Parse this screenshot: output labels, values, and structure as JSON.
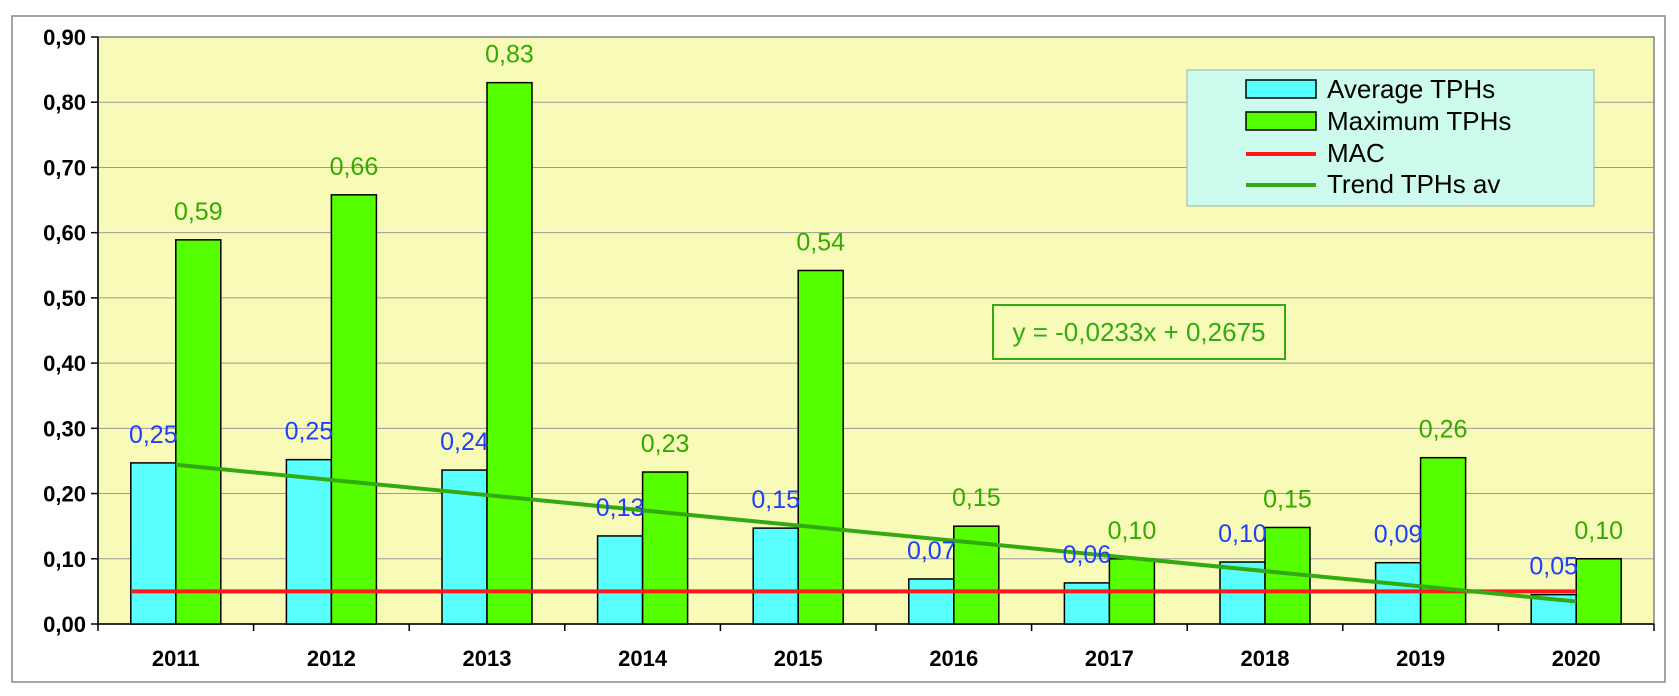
{
  "chart_data": {
    "type": "bar",
    "categories": [
      "2011",
      "2012",
      "2013",
      "2014",
      "2015",
      "2016",
      "2017",
      "2018",
      "2019",
      "2020"
    ],
    "series": [
      {
        "name": "Average TPHs",
        "type": "bar",
        "color": "#59ffff",
        "values": [
          0.247,
          0.252,
          0.236,
          0.135,
          0.147,
          0.069,
          0.063,
          0.095,
          0.094,
          0.045
        ],
        "labels": [
          "0,25",
          "0,25",
          "0,24",
          "0,13",
          "0,15",
          "0,07",
          "0,06",
          "0,10",
          "0,09",
          "0,05"
        ],
        "label_color": "#1f3fff"
      },
      {
        "name": "Maximum TPHs",
        "type": "bar",
        "color": "#55ff00",
        "values": [
          0.589,
          0.658,
          0.83,
          0.233,
          0.542,
          0.15,
          0.1,
          0.148,
          0.255,
          0.1
        ],
        "labels": [
          "0,59",
          "0,66",
          "0,83",
          "0,23",
          "0,54",
          "0,15",
          "0,10",
          "0,15",
          "0,26",
          "0,10"
        ],
        "label_color": "#33aa00"
      },
      {
        "name": "MAC",
        "type": "line",
        "color": "#ff1a1a",
        "values": [
          0.05,
          0.05,
          0.05,
          0.05,
          0.05,
          0.05,
          0.05,
          0.05,
          0.05,
          0.05
        ]
      },
      {
        "name": "Trend TPHs av",
        "type": "line",
        "color": "#33aa11",
        "trend": {
          "slope": -0.0233,
          "intercept": 0.2675
        }
      }
    ],
    "y_ticks": [
      "0,00",
      "0,10",
      "0,20",
      "0,30",
      "0,40",
      "0,50",
      "0,60",
      "0,70",
      "0,80",
      "0,90"
    ],
    "ylim": [
      0,
      0.9
    ],
    "grid": true,
    "legend_position": "top-right",
    "equation": "y = -0,0233x + 0,2675",
    "plot_background": "#f7fbb7",
    "legend_background": "#cdfcef"
  }
}
